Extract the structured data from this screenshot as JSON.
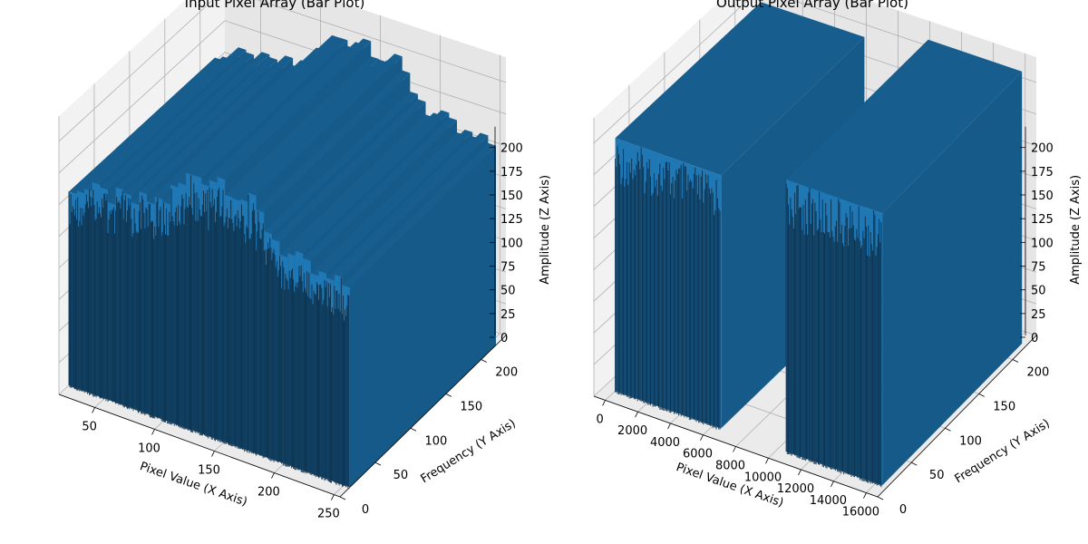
{
  "chart_data": [
    {
      "type": "bar3d",
      "title": "Input Pixel Array (Bar Plot)",
      "xlabel": "Pixel Value (X Axis)",
      "ylabel": "Frequency (Y Axis)",
      "zlabel": "Amplitude (Z Axis)",
      "xlim": [
        20,
        255
      ],
      "ylim": [
        0,
        235
      ],
      "zlim": [
        0,
        220
      ],
      "x_ticks": [
        "50",
        "100",
        "150",
        "200",
        "250"
      ],
      "y_ticks": [
        "0",
        "50",
        "100",
        "150",
        "200"
      ],
      "z_ticks": [
        "0",
        "25",
        "50",
        "75",
        "100",
        "125",
        "150",
        "175",
        "200"
      ],
      "bar_color": "#1f77b4",
      "surface_profile": {
        "x": [
          25,
          50,
          75,
          100,
          125,
          150,
          175,
          200,
          225,
          250
        ],
        "amplitude": [
          160,
          162,
          165,
          175,
          205,
          210,
          195,
          170,
          160,
          158
        ]
      }
    },
    {
      "type": "bar3d",
      "title": "Output Pixel Array (Bar Plot)",
      "xlabel": "Pixel Value (X Axis)",
      "ylabel": "Frequency (Y Axis)",
      "zlabel": "Amplitude (Z Axis)",
      "xlim": [
        -700,
        16700
      ],
      "ylim": [
        0,
        235
      ],
      "zlim": [
        0,
        220
      ],
      "x_ticks": [
        "0",
        "2000",
        "4000",
        "6000",
        "8000",
        "10000",
        "12000",
        "14000",
        "16000"
      ],
      "y_ticks": [
        "0",
        "50",
        "100",
        "150",
        "200"
      ],
      "z_ticks": [
        "0",
        "25",
        "50",
        "75",
        "100",
        "125",
        "150",
        "175",
        "200"
      ],
      "bar_color": "#1f77b4",
      "bar_blocks": [
        {
          "x_range": [
            0,
            6500
          ],
          "amplitude": 200
        },
        {
          "x_range": [
            10500,
            16400
          ],
          "amplitude": 215
        }
      ]
    }
  ]
}
